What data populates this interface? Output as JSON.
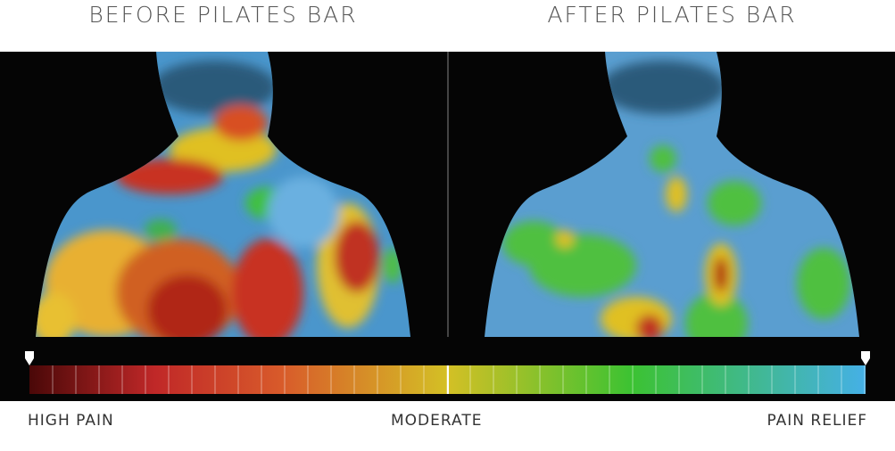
{
  "titles": {
    "before": "BEFORE PILATES BAR",
    "after": "AFTER PILATES BAR"
  },
  "scale": {
    "low": "HIGH PAIN",
    "mid": "MODERATE",
    "high": "PAIN RELIEF"
  }
}
